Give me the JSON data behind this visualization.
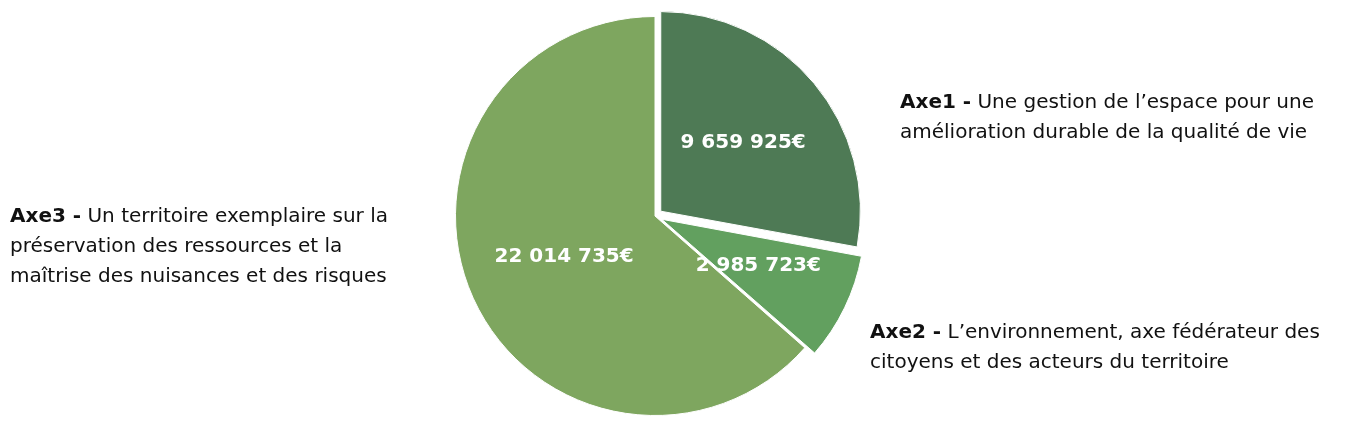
{
  "chart_data": {
    "type": "pie",
    "categories": [
      "Axe1 - Une gestion de l’espace pour une amélioration durable de la qualité de vie",
      "Axe2 - L’environnement, axe fédérateur des citoyens et des acteurs du territoire",
      "Axe3 - Un territoire exemplaire sur la préservation des ressources et la maîtrise des nuisances et des risques"
    ],
    "values": [
      9659925,
      2985723,
      22014735
    ],
    "colors": [
      "#4e7a55",
      "#62a05f",
      "#7ea65f"
    ],
    "value_labels": [
      "9 659 925€",
      "2 985 723€",
      "22 014 735€"
    ],
    "legend": false
  }
}
